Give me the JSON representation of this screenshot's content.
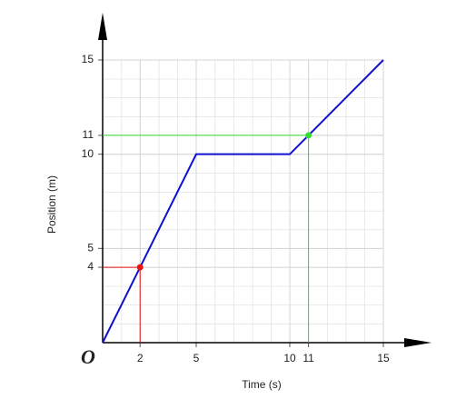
{
  "chart_data": {
    "type": "line",
    "x": [
      0,
      5,
      10,
      15
    ],
    "values": [
      0,
      10,
      10,
      15
    ],
    "color": "#1010d0",
    "highlights": [
      {
        "x": 2,
        "y": 4,
        "color": "#ee1111"
      },
      {
        "x": 11,
        "y": 11,
        "color": "#33dd33"
      }
    ],
    "xlim": [
      0,
      15
    ],
    "ylim": [
      0,
      15
    ],
    "xticks": [
      2,
      5,
      10,
      11,
      15
    ],
    "yticks": [
      4,
      5,
      10,
      11,
      15
    ],
    "xlabel": "Time (s)",
    "ylabel": "Position (m)",
    "origin_label": "O",
    "grid": true
  }
}
